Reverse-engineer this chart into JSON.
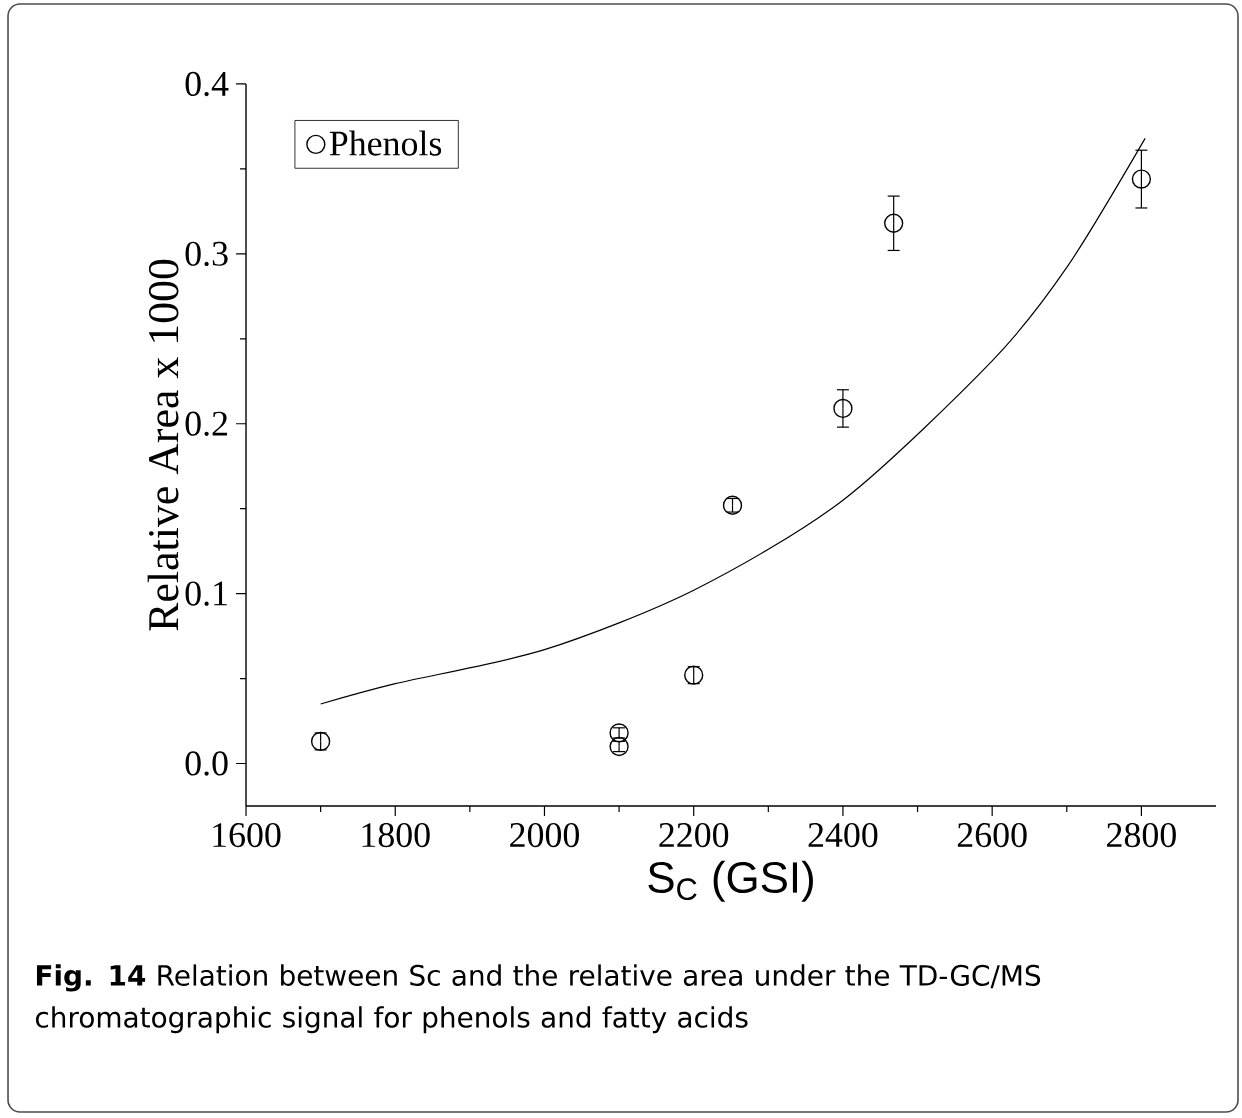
{
  "chart_data": {
    "type": "scatter",
    "xlabel": "S$_{C}$ (GSI)",
    "ylabel": "Relative Area x 1000",
    "annotations": [
      "**Fig. 14** Relation between Sc and the relative area under the TD-GC/MS chromatographic signal for phenols and fatty acids"
    ],
    "xlim": [
      1600,
      2900
    ],
    "xticks": [
      1600,
      1800,
      2000,
      2200,
      2400,
      2600,
      2800
    ],
    "ylim": [
      -0.025,
      0.4
    ],
    "yticks": [
      {
        "value": 0,
        "label": "0.0"
      },
      0.1,
      0.2,
      0.3,
      0.4
    ],
    "grid": false,
    "legend": "top left",
    "series": [
      {
        "name": "Phenols",
        "marker": "circle",
        "color": "#000000",
        "x": [
          1700,
          2100,
          2100,
          2200,
          2252,
          2400,
          2468,
          2800
        ],
        "values": [
          0.013,
          0.018,
          0.01,
          0.052,
          0.152,
          0.209,
          0.318,
          0.344
        ],
        "errors": [
          0.005,
          0.003,
          0.003,
          0.005,
          0.004,
          0.011,
          0.016,
          0.017
        ]
      },
      {
        "type": "line",
        "marker": "none",
        "line_style": "solid",
        "color": "#000000",
        "x": [
          1700,
          1800,
          2000,
          2200,
          2400,
          2600,
          2700,
          2805
        ],
        "values": [
          0.035,
          0.047,
          0.067,
          0.102,
          0.155,
          0.237,
          0.292,
          0.368
        ]
      }
    ]
  }
}
